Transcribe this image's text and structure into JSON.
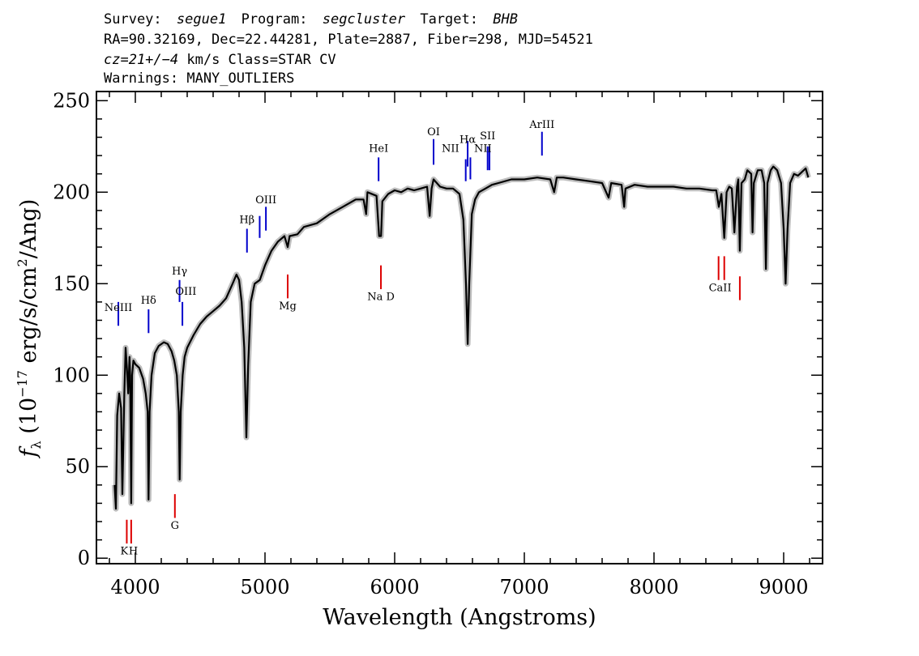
{
  "header": {
    "line1": {
      "survey_label": "Survey:",
      "survey": "segue1",
      "program_label": "Program:",
      "program": "segcluster",
      "target_label": "Target:",
      "target": "BHB"
    },
    "line2": "RA=90.32169, Dec=22.44281, Plate=2887, Fiber=298, MJD=54521",
    "line3": {
      "cz": "cz=21+/−4",
      "rest": " km/s Class=STAR CV"
    },
    "line4": "Warnings: MANY_OUTLIERS"
  },
  "chart_data": {
    "type": "line",
    "title": "",
    "xlabel": "Wavelength (Angstroms)",
    "ylabel": "f_λ (10^-17 erg/s/cm^2/Ang)",
    "ylabel_parts": {
      "f": "f",
      "sub": "λ",
      "pre": " (10",
      "exp1": "−17",
      "mid": " erg/s/cm",
      "exp2": "2",
      "post": "/Ang)"
    },
    "xlim": [
      3700,
      9300
    ],
    "ylim": [
      -3,
      255
    ],
    "x_ticks": [
      4000,
      5000,
      6000,
      7000,
      8000,
      9000
    ],
    "x_tick_labels": [
      "4000",
      "5000",
      "6000",
      "7000",
      "8000",
      "9000"
    ],
    "y_ticks": [
      0,
      50,
      100,
      150,
      200,
      250
    ],
    "y_tick_labels": [
      "0",
      "50",
      "100",
      "150",
      "200",
      "250"
    ],
    "grid": false,
    "series": [
      {
        "color": "#000000",
        "error_band_color": "#bdbdbd",
        "points": [
          [
            3840,
            40
          ],
          [
            3850,
            27
          ],
          [
            3860,
            78
          ],
          [
            3875,
            90
          ],
          [
            3890,
            82
          ],
          [
            3900,
            35
          ],
          [
            3915,
            90
          ],
          [
            3925,
            115
          ],
          [
            3935,
            104
          ],
          [
            3945,
            90
          ],
          [
            3955,
            110
          ],
          [
            3960,
            100
          ],
          [
            3968,
            30
          ],
          [
            3975,
            100
          ],
          [
            3985,
            108
          ],
          [
            4000,
            106
          ],
          [
            4030,
            104
          ],
          [
            4060,
            98
          ],
          [
            4080,
            90
          ],
          [
            4095,
            80
          ],
          [
            4102,
            32
          ],
          [
            4110,
            80
          ],
          [
            4125,
            100
          ],
          [
            4150,
            112
          ],
          [
            4180,
            116
          ],
          [
            4220,
            118
          ],
          [
            4250,
            117
          ],
          [
            4280,
            113
          ],
          [
            4300,
            108
          ],
          [
            4320,
            100
          ],
          [
            4335,
            80
          ],
          [
            4342,
            43
          ],
          [
            4350,
            80
          ],
          [
            4365,
            100
          ],
          [
            4380,
            110
          ],
          [
            4400,
            115
          ],
          [
            4450,
            122
          ],
          [
            4500,
            128
          ],
          [
            4550,
            132
          ],
          [
            4600,
            135
          ],
          [
            4650,
            138
          ],
          [
            4700,
            142
          ],
          [
            4750,
            150
          ],
          [
            4780,
            155
          ],
          [
            4800,
            152
          ],
          [
            4820,
            140
          ],
          [
            4840,
            115
          ],
          [
            4856,
            66
          ],
          [
            4870,
            105
          ],
          [
            4890,
            140
          ],
          [
            4920,
            150
          ],
          [
            4960,
            152
          ],
          [
            5000,
            160
          ],
          [
            5050,
            168
          ],
          [
            5100,
            173
          ],
          [
            5150,
            176
          ],
          [
            5175,
            170
          ],
          [
            5190,
            176
          ],
          [
            5250,
            177
          ],
          [
            5300,
            181
          ],
          [
            5400,
            183
          ],
          [
            5500,
            188
          ],
          [
            5600,
            192
          ],
          [
            5700,
            196
          ],
          [
            5760,
            196
          ],
          [
            5780,
            188
          ],
          [
            5790,
            200
          ],
          [
            5860,
            198
          ],
          [
            5880,
            176
          ],
          [
            5895,
            176
          ],
          [
            5905,
            195
          ],
          [
            5950,
            199
          ],
          [
            6000,
            201
          ],
          [
            6050,
            200
          ],
          [
            6100,
            202
          ],
          [
            6150,
            201
          ],
          [
            6200,
            202
          ],
          [
            6250,
            203
          ],
          [
            6270,
            187
          ],
          [
            6285,
            202
          ],
          [
            6300,
            207
          ],
          [
            6350,
            203
          ],
          [
            6400,
            202
          ],
          [
            6450,
            202
          ],
          [
            6500,
            199
          ],
          [
            6530,
            185
          ],
          [
            6550,
            150
          ],
          [
            6563,
            117
          ],
          [
            6575,
            150
          ],
          [
            6595,
            188
          ],
          [
            6620,
            196
          ],
          [
            6650,
            200
          ],
          [
            6700,
            202
          ],
          [
            6750,
            204
          ],
          [
            6800,
            205
          ],
          [
            6900,
            207
          ],
          [
            7000,
            207
          ],
          [
            7100,
            208
          ],
          [
            7200,
            207
          ],
          [
            7230,
            200
          ],
          [
            7250,
            208
          ],
          [
            7300,
            208
          ],
          [
            7400,
            207
          ],
          [
            7500,
            206
          ],
          [
            7600,
            205
          ],
          [
            7650,
            197
          ],
          [
            7670,
            205
          ],
          [
            7750,
            204
          ],
          [
            7770,
            192
          ],
          [
            7780,
            202
          ],
          [
            7850,
            204
          ],
          [
            7950,
            203
          ],
          [
            8050,
            203
          ],
          [
            8150,
            203
          ],
          [
            8250,
            202
          ],
          [
            8350,
            202
          ],
          [
            8450,
            201
          ],
          [
            8480,
            201
          ],
          [
            8500,
            192
          ],
          [
            8520,
            199
          ],
          [
            8542,
            175
          ],
          [
            8560,
            200
          ],
          [
            8580,
            203
          ],
          [
            8600,
            202
          ],
          [
            8620,
            178
          ],
          [
            8640,
            203
          ],
          [
            8650,
            207
          ],
          [
            8662,
            168
          ],
          [
            8675,
            205
          ],
          [
            8700,
            207
          ],
          [
            8720,
            212
          ],
          [
            8750,
            210
          ],
          [
            8760,
            178
          ],
          [
            8770,
            205
          ],
          [
            8800,
            212
          ],
          [
            8830,
            212
          ],
          [
            8850,
            205
          ],
          [
            8863,
            158
          ],
          [
            8875,
            205
          ],
          [
            8900,
            212
          ],
          [
            8920,
            214
          ],
          [
            8950,
            212
          ],
          [
            8980,
            205
          ],
          [
            9000,
            180
          ],
          [
            9015,
            150
          ],
          [
            9030,
            180
          ],
          [
            9050,
            205
          ],
          [
            9080,
            210
          ],
          [
            9110,
            209
          ],
          [
            9140,
            211
          ],
          [
            9170,
            213
          ],
          [
            9190,
            208
          ]
        ]
      }
    ],
    "emission_lines": [
      {
        "label": "NeIII",
        "x": 3869,
        "y": [
          127,
          140
        ],
        "label_y": 143,
        "color": "#0000cc"
      },
      {
        "label": "Hδ",
        "x": 4102,
        "y": [
          123,
          136
        ],
        "label_y": 139,
        "color": "#0000cc"
      },
      {
        "label": "Hγ",
        "x": 4341,
        "y": [
          140,
          152
        ],
        "label_y": 155,
        "color": "#0000cc"
      },
      {
        "label": "OIII",
        "x": 4363,
        "y": [
          127,
          140
        ],
        "label_y": 143,
        "color": "#0000cc"
      },
      {
        "label": "Hβ",
        "x": 4861,
        "y": [
          167,
          180
        ],
        "label_y": 183,
        "color": "#0000cc"
      },
      {
        "label": "OIII",
        "x": 4959,
        "y": [
          175,
          187
        ],
        "label_y": 999,
        "color": "#0000cc"
      },
      {
        "label": "OIII",
        "x": 5007,
        "y": [
          179,
          192
        ],
        "label_y": 195,
        "color": "#0000cc"
      },
      {
        "label": "HeI",
        "x": 5876,
        "y": [
          206,
          219
        ],
        "label_y": 222,
        "color": "#0000cc"
      },
      {
        "label": "OI",
        "x": 6300,
        "y": [
          215,
          229
        ],
        "label_y": 232,
        "color": "#0000cc"
      },
      {
        "label": "NII",
        "x": 6548,
        "y": [
          206,
          218
        ],
        "label_y": 221,
        "color": "#0000cc"
      },
      {
        "label": "Hα",
        "x": 6563,
        "y": [
          214,
          228
        ],
        "label_y": 231,
        "color": "#0000cc"
      },
      {
        "label": "NII",
        "x": 6584,
        "y": [
          207,
          219
        ],
        "label_y": 999,
        "color": "#0000cc"
      },
      {
        "label": "SII",
        "x": 6717,
        "y": [
          212,
          225
        ],
        "label_y": 228,
        "color": "#0000cc"
      },
      {
        "label": "SII",
        "x": 6731,
        "y": [
          212,
          225
        ],
        "label_y": 999,
        "color": "#0000cc"
      },
      {
        "label": "ArIII",
        "x": 7136,
        "y": [
          220,
          233
        ],
        "label_y": 236,
        "color": "#0000cc"
      }
    ],
    "emission_label_positions": [
      {
        "label": "NeIII",
        "x": 3869,
        "y": 135
      },
      {
        "label": "Hδ",
        "x": 4102,
        "y": 139
      },
      {
        "label": "Hγ",
        "x": 4341,
        "y": 155
      },
      {
        "label": "OIII",
        "x": 4390,
        "y": 144
      },
      {
        "label": "Hβ",
        "x": 4861,
        "y": 183
      },
      {
        "label": "OIII",
        "x": 5007,
        "y": 194
      },
      {
        "label": "HeI",
        "x": 5876,
        "y": 222
      },
      {
        "label": "OI",
        "x": 6300,
        "y": 231
      },
      {
        "label": "NII",
        "x": 6430,
        "y": 222
      },
      {
        "label": "Hα",
        "x": 6563,
        "y": 227
      },
      {
        "label": "NII",
        "x": 6680,
        "y": 222
      },
      {
        "label": "SII",
        "x": 6717,
        "y": 229
      },
      {
        "label": "ArIII",
        "x": 7136,
        "y": 235
      }
    ],
    "absorption_lines": [
      {
        "label": "K",
        "x": 3934,
        "y": [
          8,
          21
        ],
        "label_x": 3915,
        "label_y": 2,
        "color": "#dd0000"
      },
      {
        "label": "H",
        "x": 3968,
        "y": [
          8,
          21
        ],
        "label_x": 3985,
        "label_y": 2,
        "color": "#dd0000"
      },
      {
        "label": "G",
        "x": 4305,
        "y": [
          22,
          35
        ],
        "label_x": 4305,
        "label_y": 16,
        "color": "#dd0000"
      },
      {
        "label": "Mg",
        "x": 5175,
        "y": [
          142,
          155
        ],
        "label_x": 5175,
        "label_y": 136,
        "color": "#dd0000"
      },
      {
        "label": "Na D",
        "x": 5894,
        "y": [
          147,
          160
        ],
        "label_x": 5894,
        "label_y": 141,
        "color": "#dd0000"
      },
      {
        "label": "CaII",
        "x": 8498,
        "y": [
          152,
          165
        ],
        "label_x": 8498,
        "label_y": 999,
        "color": "#dd0000"
      },
      {
        "label": "CaII",
        "x": 8542,
        "y": [
          152,
          165
        ],
        "label_x": 8510,
        "label_y": 146,
        "color": "#dd0000"
      },
      {
        "label": "CaII",
        "x": 8662,
        "y": [
          141,
          154
        ],
        "label_x": 8662,
        "label_y": 999,
        "color": "#dd0000"
      }
    ]
  }
}
